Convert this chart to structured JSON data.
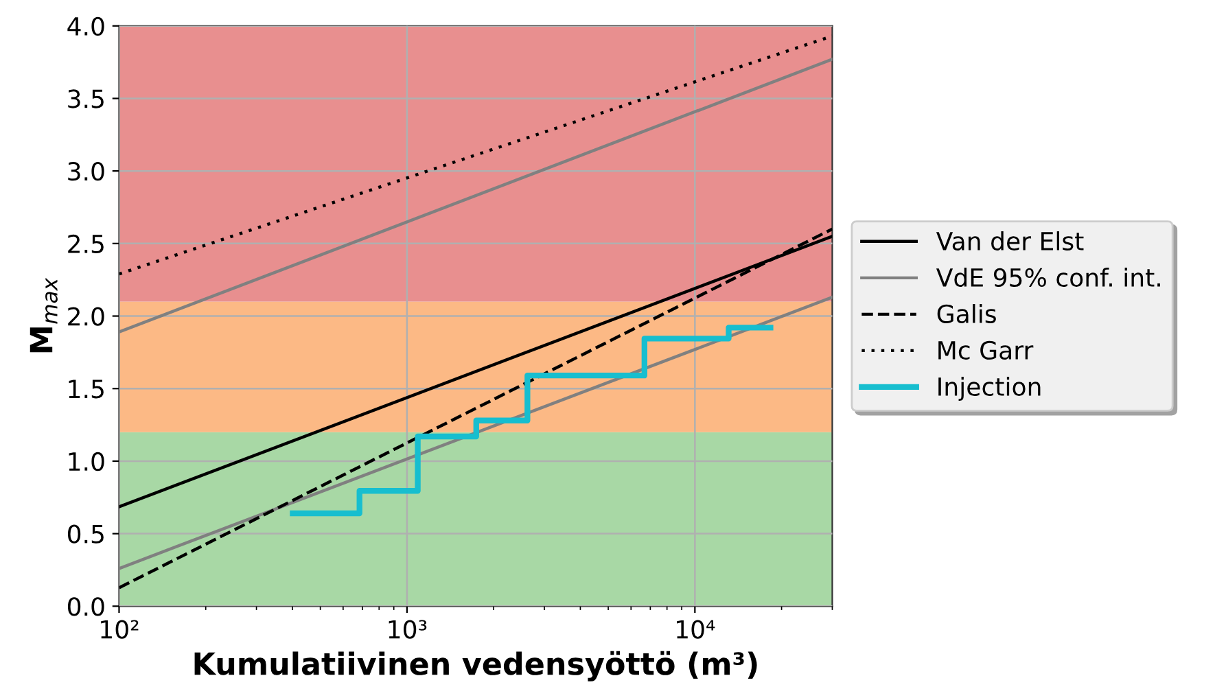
{
  "chart_data": {
    "type": "line",
    "xlabel": "Kumulatiivinen vedensyöttö (m³)",
    "ylabel": "M$_{max}$",
    "log": "x",
    "xlim": [
      100,
      30000
    ],
    "ylim": [
      0,
      4.0
    ],
    "xticks": [
      {
        "value": 100,
        "label": "10²"
      },
      {
        "value": 1000,
        "label": "10³"
      },
      {
        "value": 10000,
        "label": "10⁴"
      }
    ],
    "yticks": [
      {
        "value": 0,
        "label": "0.0"
      },
      {
        "value": 0.5,
        "label": "0.5"
      },
      {
        "value": 1,
        "label": "1.0"
      },
      {
        "value": 1.5,
        "label": "1.5"
      },
      {
        "value": 2,
        "label": "2.0"
      },
      {
        "value": 2.5,
        "label": "2.5"
      },
      {
        "value": 3,
        "label": "3.0"
      },
      {
        "value": 3.5,
        "label": "3.5"
      },
      {
        "value": 4,
        "label": "4.0"
      }
    ],
    "grid": true,
    "legend": "right",
    "bands": [
      {
        "axis": "y",
        "from": 0,
        "to": 1.2,
        "color": "#a8d8a5"
      },
      {
        "axis": "y",
        "from": 1.2,
        "to": 2.1,
        "color": "#fcb985"
      },
      {
        "axis": "y",
        "from": 2.1,
        "to": 4.0,
        "color": "#e88f8f"
      }
    ],
    "series": [
      {
        "name": "Van der Elst",
        "color": "#000000",
        "line_style": "solid",
        "x": [
          100,
          30000
        ],
        "values": [
          0.685,
          2.55
        ]
      },
      {
        "name": "VdE 95% conf. int.",
        "color": "#808080",
        "line_style": "solid",
        "x": [
          100,
          30000
        ],
        "values": [
          1.89,
          3.77
        ]
      },
      {
        "color": "#808080",
        "line_style": "solid",
        "x": [
          100,
          30000
        ],
        "values": [
          0.26,
          2.13
        ]
      },
      {
        "name": "Galis",
        "color": "#000000",
        "line_style": "dashed",
        "x": [
          100,
          30000
        ],
        "values": [
          0.127,
          2.6
        ]
      },
      {
        "name": "Mc Garr",
        "color": "#000000",
        "line_style": "dotted",
        "x": [
          100,
          30000
        ],
        "values": [
          2.29,
          3.93
        ]
      },
      {
        "name": "Injection",
        "type": "step",
        "color": "#17becf",
        "line_style": "solid",
        "x": [
          401,
          684,
          1090,
          1740,
          2620,
          6680,
          13100,
          18300
        ],
        "values": [
          0.64,
          0.795,
          1.17,
          1.28,
          1.59,
          1.845,
          1.92,
          1.92
        ]
      }
    ]
  }
}
